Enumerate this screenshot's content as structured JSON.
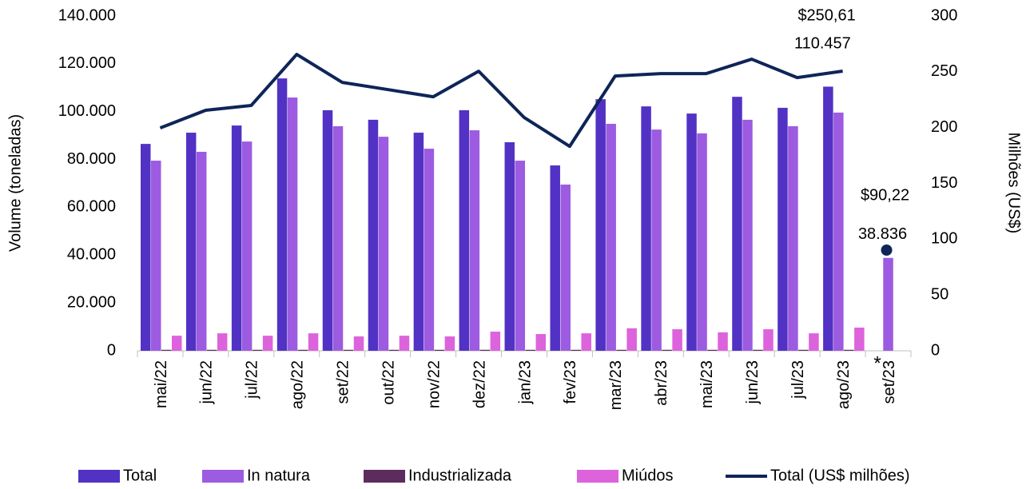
{
  "chart_data": {
    "type": "bar-line",
    "y_label": "Volume (toneladas)",
    "y2_label": "Milhões (US$)",
    "categories": [
      "mai/22",
      "jun/22",
      "jul/22",
      "ago/22",
      "set/22",
      "out/22",
      "nov/22",
      "dez/22",
      "jan/23",
      "fev/23",
      "mar/23",
      "abr/23",
      "mai/23",
      "jun/23",
      "jul/23",
      "ago/23",
      "set/23"
    ],
    "annotation": "*",
    "ylim": [
      0,
      140000
    ],
    "yticks": [
      0,
      {
        "value": 20000,
        "label": "20.000"
      },
      {
        "value": 40000,
        "label": "40.000"
      },
      {
        "value": 60000,
        "label": "60.000"
      },
      {
        "value": 80000,
        "label": "80.000"
      },
      {
        "value": 100000,
        "label": "100.000"
      },
      {
        "value": 120000,
        "label": "120.000"
      },
      {
        "value": 140000,
        "label": "140.000"
      }
    ],
    "y2lim": [
      0,
      300
    ],
    "y2ticks": [
      0,
      50,
      100,
      150,
      200,
      250,
      300
    ],
    "series": [
      {
        "name": "Total",
        "type": "bar",
        "color": "#5232c4",
        "values": [
          86500,
          91200,
          94200,
          113900,
          100600,
          96600,
          91200,
          100600,
          87200,
          77500,
          105200,
          102200,
          99200,
          106200,
          101600,
          110457,
          null
        ],
        "value_labels": [
          null,
          null,
          null,
          null,
          null,
          null,
          null,
          null,
          null,
          null,
          null,
          null,
          null,
          null,
          null,
          "110.457",
          null
        ]
      },
      {
        "name": "In natura",
        "type": "bar",
        "color": "#9c5be0",
        "values": [
          79500,
          83200,
          87500,
          105900,
          93900,
          89500,
          84500,
          92200,
          79500,
          69500,
          94900,
          92500,
          90900,
          96600,
          93900,
          99600,
          38836
        ],
        "value_labels": [
          null,
          null,
          null,
          null,
          null,
          null,
          null,
          null,
          null,
          null,
          null,
          null,
          null,
          null,
          null,
          null,
          "38.836"
        ]
      },
      {
        "name": "Industrializada",
        "type": "bar",
        "color": "#5e2b5e",
        "values": [
          400,
          400,
          400,
          400,
          400,
          400,
          400,
          400,
          400,
          400,
          400,
          400,
          400,
          400,
          400,
          400,
          null
        ]
      },
      {
        "name": "Miúdos",
        "type": "bar",
        "color": "#dc63dc",
        "values": [
          6300,
          7300,
          6300,
          7300,
          6000,
          6300,
          6000,
          8000,
          7000,
          7300,
          9400,
          9000,
          7700,
          9000,
          7300,
          9700,
          null
        ]
      },
      {
        "name": "Total (US$ milhões)",
        "type": "line",
        "axis": "y2",
        "color": "#0e2558",
        "values": [
          199.7,
          215.5,
          219.8,
          265.6,
          240.5,
          234.1,
          227.6,
          250.5,
          209,
          183.2,
          246.2,
          248.4,
          248.4,
          261.3,
          244.8,
          250.61,
          null
        ],
        "value_labels": [
          null,
          null,
          null,
          null,
          null,
          null,
          null,
          null,
          null,
          null,
          null,
          null,
          null,
          null,
          null,
          "$250,61",
          null
        ]
      },
      {
        "type": "scatter",
        "axis": "y2",
        "color": "#0e2558",
        "values": [
          null,
          null,
          null,
          null,
          null,
          null,
          null,
          null,
          null,
          null,
          null,
          null,
          null,
          null,
          null,
          null,
          90.22
        ],
        "value_labels": [
          null,
          null,
          null,
          null,
          null,
          null,
          null,
          null,
          null,
          null,
          null,
          null,
          null,
          null,
          null,
          null,
          "$90,22"
        ]
      }
    ]
  }
}
